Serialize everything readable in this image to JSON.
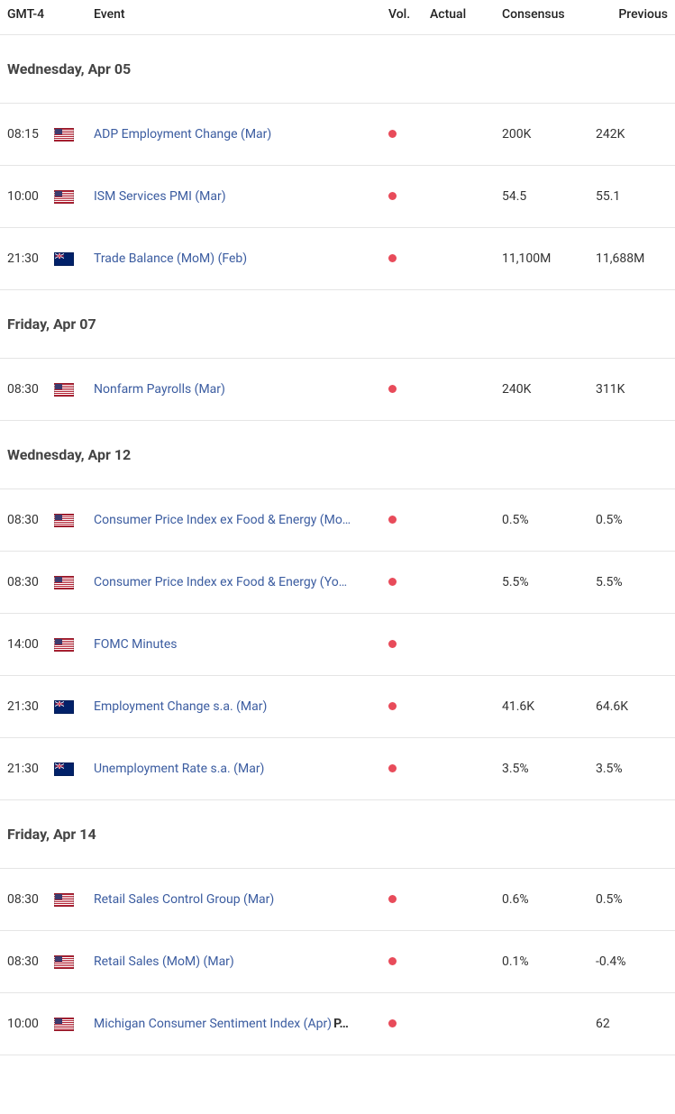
{
  "header": {
    "timezone": "GMT-4",
    "event": "Event",
    "vol": "Vol.",
    "actual": "Actual",
    "consensus": "Consensus",
    "previous": "Previous"
  },
  "colors": {
    "vol_high": "#e84b5a",
    "event_link": "#3b5ca0",
    "text": "#333333",
    "border": "#e5e5e5",
    "date_header": "#444444"
  },
  "groups": [
    {
      "date": "Wednesday, Apr 05",
      "events": [
        {
          "time": "08:15",
          "flag": "us",
          "event": "ADP Employment Change (Mar)",
          "vol": "high",
          "actual": "",
          "consensus": "200K",
          "previous": "242K"
        },
        {
          "time": "10:00",
          "flag": "us",
          "event": "ISM Services PMI (Mar)",
          "vol": "high",
          "actual": "",
          "consensus": "54.5",
          "previous": "55.1"
        },
        {
          "time": "21:30",
          "flag": "au",
          "event": "Trade Balance (MoM) (Feb)",
          "vol": "high",
          "actual": "",
          "consensus": "11,100M",
          "previous": "11,688M"
        }
      ]
    },
    {
      "date": "Friday, Apr 07",
      "events": [
        {
          "time": "08:30",
          "flag": "us",
          "event": "Nonfarm Payrolls (Mar)",
          "vol": "high",
          "actual": "",
          "consensus": "240K",
          "previous": "311K"
        }
      ]
    },
    {
      "date": "Wednesday, Apr 12",
      "events": [
        {
          "time": "08:30",
          "flag": "us",
          "event": "Consumer Price Index ex Food & Energy (Mo…",
          "vol": "high",
          "actual": "",
          "consensus": "0.5%",
          "previous": "0.5%"
        },
        {
          "time": "08:30",
          "flag": "us",
          "event": "Consumer Price Index ex Food & Energy (Yo…",
          "vol": "high",
          "actual": "",
          "consensus": "5.5%",
          "previous": "5.5%"
        },
        {
          "time": "14:00",
          "flag": "us",
          "event": "FOMC Minutes",
          "vol": "high",
          "actual": "",
          "consensus": "",
          "previous": ""
        },
        {
          "time": "21:30",
          "flag": "au",
          "event": "Employment Change s.a. (Mar)",
          "vol": "high",
          "actual": "",
          "consensus": "41.6K",
          "previous": "64.6K"
        },
        {
          "time": "21:30",
          "flag": "au",
          "event": "Unemployment Rate s.a. (Mar)",
          "vol": "high",
          "actual": "",
          "consensus": "3.5%",
          "previous": "3.5%"
        }
      ]
    },
    {
      "date": "Friday, Apr 14",
      "events": [
        {
          "time": "08:30",
          "flag": "us",
          "event": "Retail Sales Control Group (Mar)",
          "vol": "high",
          "actual": "",
          "consensus": "0.6%",
          "previous": "0.5%"
        },
        {
          "time": "08:30",
          "flag": "us",
          "event": "Retail Sales (MoM) (Mar)",
          "vol": "high",
          "actual": "",
          "consensus": "0.1%",
          "previous": "-0.4%"
        },
        {
          "time": "10:00",
          "flag": "us",
          "event": "Michigan Consumer Sentiment Index (Apr)",
          "suffix": "P…",
          "vol": "high",
          "actual": "",
          "consensus": "",
          "previous": "62"
        }
      ]
    }
  ]
}
